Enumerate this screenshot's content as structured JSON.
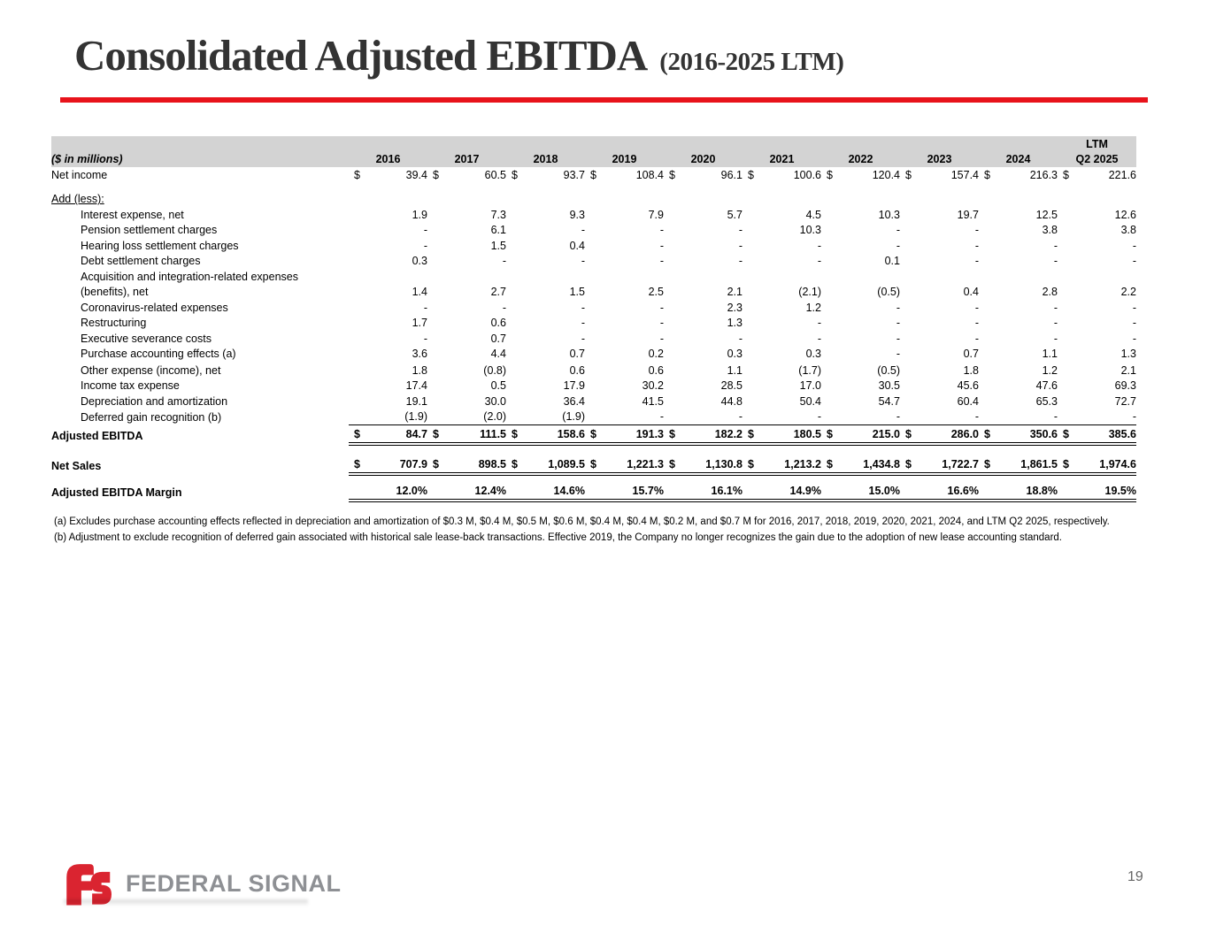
{
  "slide": {
    "title": "Consolidated Adjusted EBITDA",
    "title_suffix": "(2016-2025 LTM)",
    "page_number": "19",
    "logo_wordmark": "FEDERAL SIGNAL",
    "colors": {
      "accent_red": "#E8131B",
      "header_gray": "#D3D3D3",
      "logo_red": "#DA2430",
      "logo_gray": "#8E9094",
      "title_gray": "#333333"
    }
  },
  "table": {
    "unit_label": "($ in millions)",
    "ltm_label": "LTM",
    "dollar_sign": "$",
    "columns": [
      "2016",
      "2017",
      "2018",
      "2019",
      "2020",
      "2021",
      "2022",
      "2023",
      "2024",
      "Q2 2025"
    ],
    "rows": [
      {
        "label": "Net income",
        "style": "plain",
        "dollar": true,
        "gap_before": 0,
        "line": "none",
        "values": [
          "39.4",
          "60.5",
          "93.7",
          "108.4",
          "96.1",
          "100.6",
          "120.4",
          "157.4",
          "216.3",
          "221.6"
        ]
      },
      {
        "label": "Add (less):",
        "style": "section",
        "dollar": false,
        "gap_before": 10,
        "line": "none",
        "values": null
      },
      {
        "label": "Interest expense, net",
        "style": "item",
        "dollar": false,
        "gap_before": 0,
        "line": "none",
        "values": [
          "1.9",
          "7.3",
          "9.3",
          "7.9",
          "5.7",
          "4.5",
          "10.3",
          "19.7",
          "12.5",
          "12.6"
        ]
      },
      {
        "label": "Pension settlement charges",
        "style": "item",
        "dollar": false,
        "gap_before": 0,
        "line": "none",
        "values": [
          "-",
          "6.1",
          "-",
          "-",
          "-",
          "10.3",
          "-",
          "-",
          "3.8",
          "3.8"
        ]
      },
      {
        "label": "Hearing loss settlement charges",
        "style": "item",
        "dollar": false,
        "gap_before": 0,
        "line": "none",
        "values": [
          "-",
          "1.5",
          "0.4",
          "-",
          "-",
          "-",
          "-",
          "-",
          "-",
          "-"
        ]
      },
      {
        "label": "Debt settlement charges",
        "style": "item",
        "dollar": false,
        "gap_before": 0,
        "line": "none",
        "values": [
          "0.3",
          "-",
          "-",
          "-",
          "-",
          "-",
          "0.1",
          "-",
          "-",
          "-"
        ]
      },
      {
        "label": "Acquisition and integration-related expenses",
        "style": "item",
        "dollar": false,
        "gap_before": 0,
        "line": "none",
        "values": null
      },
      {
        "label": "(benefits), net",
        "style": "item",
        "dollar": false,
        "gap_before": 0,
        "line": "none",
        "values": [
          "1.4",
          "2.7",
          "1.5",
          "2.5",
          "2.1",
          "(2.1)",
          "(0.5)",
          "0.4",
          "2.8",
          "2.2"
        ]
      },
      {
        "label": "Coronavirus-related expenses",
        "style": "item",
        "dollar": false,
        "gap_before": 0,
        "line": "none",
        "values": [
          "-",
          "-",
          "-",
          "-",
          "2.3",
          "1.2",
          "-",
          "-",
          "-",
          "-"
        ]
      },
      {
        "label": "Restructuring",
        "style": "item",
        "dollar": false,
        "gap_before": 0,
        "line": "none",
        "values": [
          "1.7",
          "0.6",
          "-",
          "-",
          "1.3",
          "-",
          "-",
          "-",
          "-",
          "-"
        ]
      },
      {
        "label": "Executive severance costs",
        "style": "item",
        "dollar": false,
        "gap_before": 0,
        "line": "none",
        "values": [
          "-",
          "0.7",
          "-",
          "-",
          "-",
          "-",
          "-",
          "-",
          "-",
          "-"
        ]
      },
      {
        "label": "Purchase accounting effects (a)",
        "style": "item",
        "dollar": false,
        "gap_before": 0,
        "line": "none",
        "values": [
          "3.6",
          "4.4",
          "0.7",
          "0.2",
          "0.3",
          "0.3",
          "-",
          "0.7",
          "1.1",
          "1.3"
        ]
      },
      {
        "label": "Other expense (income), net",
        "style": "item",
        "dollar": false,
        "gap_before": 1,
        "line": "none",
        "values": [
          "1.8",
          "(0.8)",
          "0.6",
          "0.6",
          "1.1",
          "(1.7)",
          "(0.5)",
          "1.8",
          "1.2",
          "2.1"
        ]
      },
      {
        "label": "Income tax expense",
        "style": "item",
        "dollar": false,
        "gap_before": 0,
        "line": "none",
        "values": [
          "17.4",
          "0.5",
          "17.9",
          "30.2",
          "28.5",
          "17.0",
          "30.5",
          "45.6",
          "47.6",
          "69.3"
        ]
      },
      {
        "label": "Depreciation and amortization",
        "style": "item",
        "dollar": false,
        "gap_before": 0,
        "line": "none",
        "values": [
          "19.1",
          "30.0",
          "36.4",
          "41.5",
          "44.8",
          "50.4",
          "54.7",
          "60.4",
          "65.3",
          "72.7"
        ]
      },
      {
        "label": "Deferred gain recognition (b)",
        "style": "item",
        "dollar": false,
        "gap_before": 0,
        "line": "single",
        "values": [
          "(1.9)",
          "(2.0)",
          "(1.9)",
          "-",
          "-",
          "-",
          "-",
          "-",
          "-",
          "-"
        ]
      },
      {
        "label": "Adjusted EBITDA",
        "style": "total",
        "dollar": true,
        "gap_before": 0,
        "line": "double",
        "values": [
          "84.7",
          "111.5",
          "158.6",
          "191.3",
          "182.2",
          "180.5",
          "215.0",
          "286.0",
          "350.6",
          "385.6"
        ]
      },
      {
        "label": "Net Sales",
        "style": "total",
        "dollar": true,
        "gap_before": 11,
        "line": "double",
        "values": [
          "707.9",
          "898.5",
          "1,089.5",
          "1,221.3",
          "1,130.8",
          "1,213.2",
          "1,434.8",
          "1,722.7",
          "1,861.5",
          "1,974.6"
        ]
      },
      {
        "label": "Adjusted EBITDA Margin",
        "style": "total",
        "dollar": false,
        "gap_before": 7,
        "line": "double",
        "values": [
          "12.0%",
          "12.4%",
          "14.6%",
          "15.7%",
          "16.1%",
          "14.9%",
          "15.0%",
          "16.6%",
          "18.8%",
          "19.5%"
        ]
      }
    ]
  },
  "footnotes": {
    "a": "(a) Excludes purchase accounting effects reflected in depreciation and amortization of $0.3 M, $0.4 M, $0.5 M, $0.6 M, $0.4 M, $0.4 M, $0.2 M, and $0.7 M for 2016, 2017, 2018, 2019, 2020, 2021, 2024, and LTM Q2 2025, respectively.",
    "b": "(b) Adjustment to exclude recognition of deferred gain associated with historical sale lease-back transactions.  Effective 2019, the Company no longer recognizes the gain due to the adoption of new lease accounting standard."
  }
}
